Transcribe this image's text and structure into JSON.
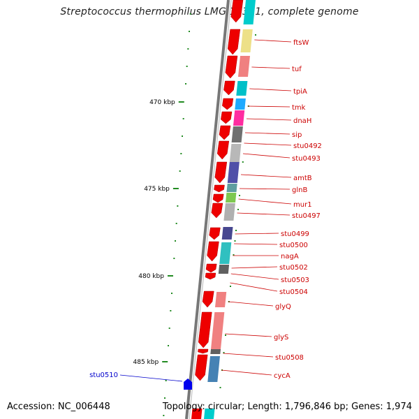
{
  "title": "Streptococcus thermophilus LMG 18311, complete genome",
  "footer": {
    "accession": "Accession: NC_006448",
    "summary": "Topology: circular; Length: 1,796,846 bp; Genes: 1,974"
  },
  "ticks": [
    {
      "label": "470 kbp"
    },
    {
      "label": "475 kbp"
    },
    {
      "label": "480 kbp"
    },
    {
      "label": "485 kbp"
    }
  ],
  "colors": {
    "gene_red": "#ee0000",
    "reverse_gene": "#0000ee",
    "label_red": "#cc0000",
    "label_blue": "#0000cc",
    "tick_green": "#228b22",
    "backbone": "#777777"
  },
  "gene_labels": [
    {
      "name": "ftsW"
    },
    {
      "name": "tuf"
    },
    {
      "name": "tpiA"
    },
    {
      "name": "tmk"
    },
    {
      "name": "dnaH"
    },
    {
      "name": "sip"
    },
    {
      "name": "stu0492"
    },
    {
      "name": "stu0493"
    },
    {
      "name": "amtB"
    },
    {
      "name": "glnB"
    },
    {
      "name": "mur1"
    },
    {
      "name": "stu0497"
    },
    {
      "name": "stu0499"
    },
    {
      "name": "stu0500"
    },
    {
      "name": "nagA"
    },
    {
      "name": "stu0502"
    },
    {
      "name": "stu0503"
    },
    {
      "name": "stu0504"
    },
    {
      "name": "glyQ"
    },
    {
      "name": "glyS"
    },
    {
      "name": "stu0508"
    },
    {
      "name": "cycA"
    }
  ],
  "reverse_gene": {
    "name": "stu0510"
  },
  "cog_colors": [
    "#00cccc",
    "#ede088",
    "#f08080",
    "#00c0c8",
    "#1eaaff",
    "#ff2ca0",
    "#707070",
    "#b8b8b8",
    "#5050a8",
    "#5f9ea0",
    "#7ec850",
    "#b0b0b0",
    "#484890",
    "#30c0c0",
    "#606060",
    "#f08080",
    "#f08080",
    "#606060",
    "#4682b4"
  ]
}
